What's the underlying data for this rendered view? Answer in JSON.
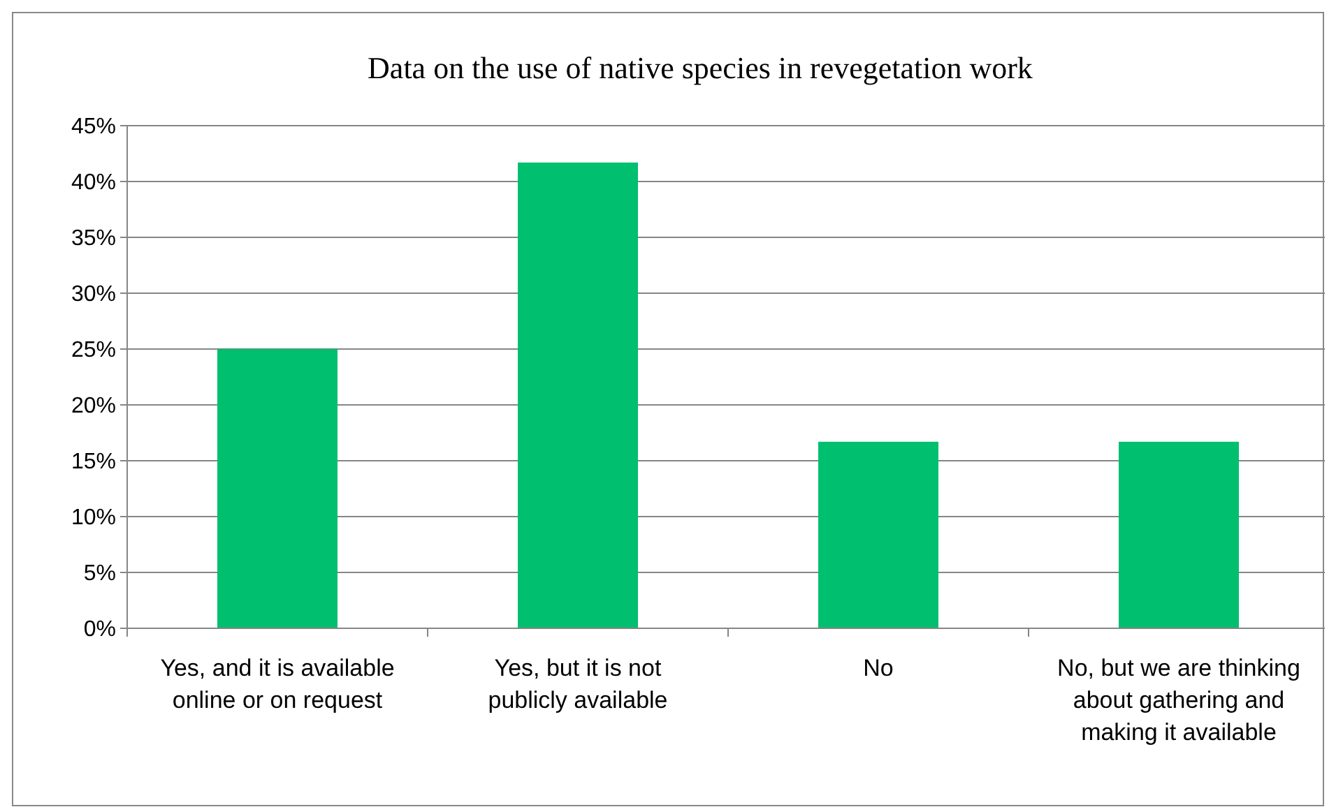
{
  "chart_data": {
    "type": "bar",
    "title": "Data on the use of native species in revegetation work",
    "categories": [
      "Yes, and it is available online or on request",
      "Yes, but it is not publicly available",
      "No",
      "No, but we are thinking about gathering and making it available"
    ],
    "values": [
      25,
      41.7,
      16.7,
      16.7
    ],
    "color": "#00bf6f",
    "ylim": [
      0,
      45
    ],
    "yticks": [
      {
        "value": 0,
        "label": "0%"
      },
      {
        "value": 5,
        "label": "5%"
      },
      {
        "value": 10,
        "label": "10%"
      },
      {
        "value": 15,
        "label": "15%"
      },
      {
        "value": 20,
        "label": "20%"
      },
      {
        "value": 25,
        "label": "25%"
      },
      {
        "value": 30,
        "label": "30%"
      },
      {
        "value": 35,
        "label": "35%"
      },
      {
        "value": 40,
        "label": "40%"
      },
      {
        "value": 45,
        "label": "45%"
      }
    ],
    "grid": "y"
  }
}
